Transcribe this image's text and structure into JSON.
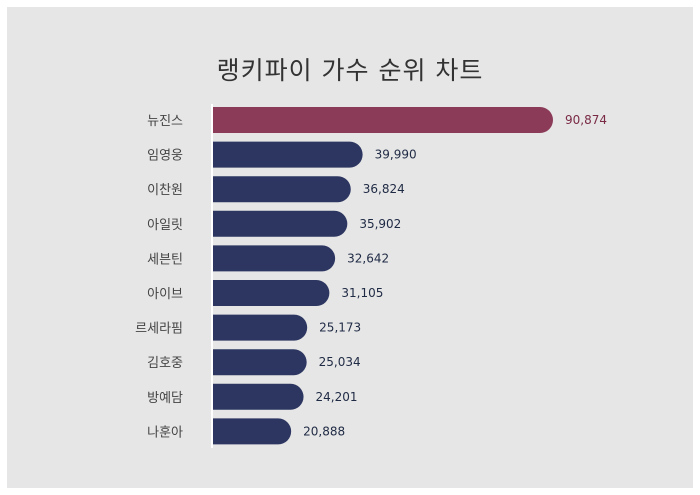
{
  "chart_data": {
    "type": "bar",
    "orientation": "horizontal",
    "title": "랭키파이 가수 순위 차트",
    "categories": [
      "뉴진스",
      "임영웅",
      "이찬원",
      "아일릿",
      "세븐틴",
      "아이브",
      "르세라핌",
      "김호중",
      "방예담",
      "나훈아"
    ],
    "values": [
      90874,
      39990,
      36824,
      35902,
      32642,
      31105,
      25173,
      25034,
      24201,
      20888
    ],
    "value_labels": [
      "90,874",
      "39,990",
      "36,824",
      "35,902",
      "32,642",
      "31,105",
      "25,173",
      "25,034",
      "24,201",
      "20,888"
    ],
    "xlim": [
      0,
      90874
    ],
    "grid": false,
    "legend": "none",
    "colors": {
      "highlight_bar": "#8b3a58",
      "bar": "#2c3660",
      "highlight_label": "#7a2a45",
      "label": "#1f2a44",
      "background": "#e6e6e6"
    }
  }
}
